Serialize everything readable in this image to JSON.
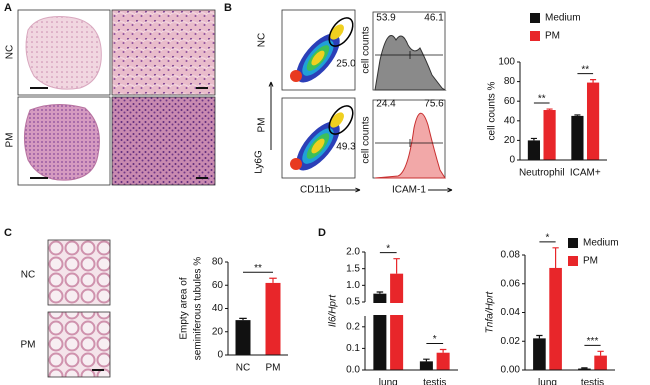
{
  "figure": {
    "panel_labels": [
      "A",
      "B",
      "C",
      "D"
    ],
    "A": {
      "rows": [
        "NC",
        "PM"
      ]
    },
    "B": {
      "rows": [
        "NC",
        "PM"
      ],
      "y_axis": "Ly6G",
      "x_axis": "CD11b",
      "gates": [
        "25.0",
        "49.3"
      ],
      "histogram_y": "cell counts",
      "histogram_x": "ICAM-1",
      "histogram_gates": [
        [
          "53.9",
          "46.1"
        ],
        [
          "24.4",
          "75.6"
        ]
      ]
    },
    "C": {
      "rows": [
        "NC",
        "PM"
      ]
    }
  },
  "chart_data": [
    {
      "type": "bar",
      "y_label": "cell counts %",
      "categories": [
        "Neutrophil",
        "ICAM+"
      ],
      "series": [
        {
          "name": "Medium",
          "color": "#111111",
          "values": [
            20,
            45
          ],
          "errors": [
            2,
            1
          ]
        },
        {
          "name": "PM",
          "color": "#e8262a",
          "values": [
            51,
            79
          ],
          "errors": [
            1,
            3
          ]
        }
      ],
      "annotations": [
        "**",
        "**"
      ],
      "ylim": [
        0,
        100
      ],
      "yticks": [
        0,
        20,
        40,
        60,
        80,
        100
      ],
      "legend": true
    },
    {
      "type": "bar",
      "y_label": [
        "Empty area of",
        "seminiferous tubules %"
      ],
      "categories": [
        "NC",
        "PM"
      ],
      "values": [
        30,
        62
      ],
      "errors": [
        1.5,
        4
      ],
      "colors": [
        "#111111",
        "#e8262a"
      ],
      "annotations": [
        "**"
      ],
      "ylim": [
        0,
        80
      ],
      "yticks": [
        0,
        20,
        40,
        60,
        80
      ]
    },
    {
      "type": "bar",
      "y_label": "Il6/Hprt",
      "categories": [
        "lung",
        "testis"
      ],
      "series": [
        {
          "name": "Medium",
          "color": "#111111",
          "values": [
            0.75,
            0.04
          ],
          "errors": [
            0.05,
            0.01
          ]
        },
        {
          "name": "PM",
          "color": "#e8262a",
          "values": [
            1.35,
            0.08
          ],
          "errors": [
            0.45,
            0.015
          ]
        }
      ],
      "annotations": [
        "*",
        "*"
      ],
      "ylim": [
        0,
        2.0
      ],
      "axis_break": [
        0.25,
        0.5
      ],
      "yticks": [
        {
          "value": 0,
          "label": "0.0"
        },
        0.1,
        0.2,
        0.5,
        {
          "value": 1,
          "label": "1.0"
        },
        1.5,
        {
          "value": 2,
          "label": "2.0"
        }
      ],
      "legend": true
    },
    {
      "type": "bar",
      "y_label": "Tnfa/Hprt",
      "categories": [
        "lung",
        "testis"
      ],
      "series": [
        {
          "color": "#111111",
          "values": [
            0.022,
            0.001
          ],
          "errors": [
            0.002,
            0.0005
          ]
        },
        {
          "color": "#e8262a",
          "values": [
            0.071,
            0.01
          ],
          "errors": [
            0.014,
            0.003
          ]
        }
      ],
      "annotations": [
        "*",
        "***"
      ],
      "ylim": [
        0,
        0.08
      ],
      "yticks": [
        {
          "value": 0,
          "label": "0.00"
        },
        0.02,
        0.04,
        0.06,
        0.08
      ]
    }
  ]
}
